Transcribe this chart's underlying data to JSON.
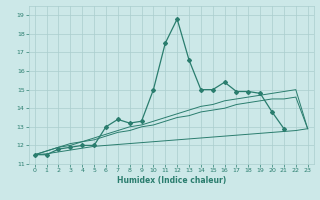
{
  "xlabel": "Humidex (Indice chaleur)",
  "x": [
    0,
    1,
    2,
    3,
    4,
    5,
    6,
    7,
    8,
    9,
    10,
    11,
    12,
    13,
    14,
    15,
    16,
    17,
    18,
    19,
    20,
    21,
    22,
    23
  ],
  "y_main": [
    11.5,
    11.5,
    11.8,
    11.9,
    12.0,
    12.0,
    13.0,
    13.4,
    13.2,
    13.3,
    15.0,
    17.5,
    18.8,
    16.6,
    15.0,
    15.0,
    15.4,
    14.9,
    14.9,
    14.8,
    13.8,
    12.9,
    null,
    null
  ],
  "y_trend1": [
    11.5,
    11.7,
    11.9,
    12.1,
    12.2,
    12.4,
    12.6,
    12.8,
    13.0,
    13.1,
    13.3,
    13.5,
    13.7,
    13.9,
    14.1,
    14.2,
    14.4,
    14.5,
    14.6,
    14.7,
    14.8,
    14.9,
    15.0,
    12.9
  ],
  "y_trend2": [
    11.5,
    11.7,
    11.9,
    12.0,
    12.2,
    12.3,
    12.5,
    12.7,
    12.8,
    13.0,
    13.1,
    13.3,
    13.5,
    13.6,
    13.8,
    13.9,
    14.0,
    14.2,
    14.3,
    14.4,
    14.5,
    14.5,
    14.6,
    12.9
  ],
  "y_trend3": [
    11.5,
    11.55,
    11.65,
    11.75,
    11.85,
    11.95,
    12.0,
    12.05,
    12.1,
    12.15,
    12.2,
    12.25,
    12.3,
    12.35,
    12.4,
    12.45,
    12.5,
    12.55,
    12.6,
    12.65,
    12.7,
    12.75,
    12.8,
    12.9
  ],
  "color_main": "#2a7d6e",
  "bg_color": "#cce8e8",
  "grid_color": "#aacece",
  "ylim": [
    11.0,
    19.5
  ],
  "xlim": [
    -0.5,
    23.5
  ],
  "yticks": [
    11,
    12,
    13,
    14,
    15,
    16,
    17,
    18,
    19
  ],
  "xticks": [
    0,
    1,
    2,
    3,
    4,
    5,
    6,
    7,
    8,
    9,
    10,
    11,
    12,
    13,
    14,
    15,
    16,
    17,
    18,
    19,
    20,
    21,
    22,
    23
  ]
}
